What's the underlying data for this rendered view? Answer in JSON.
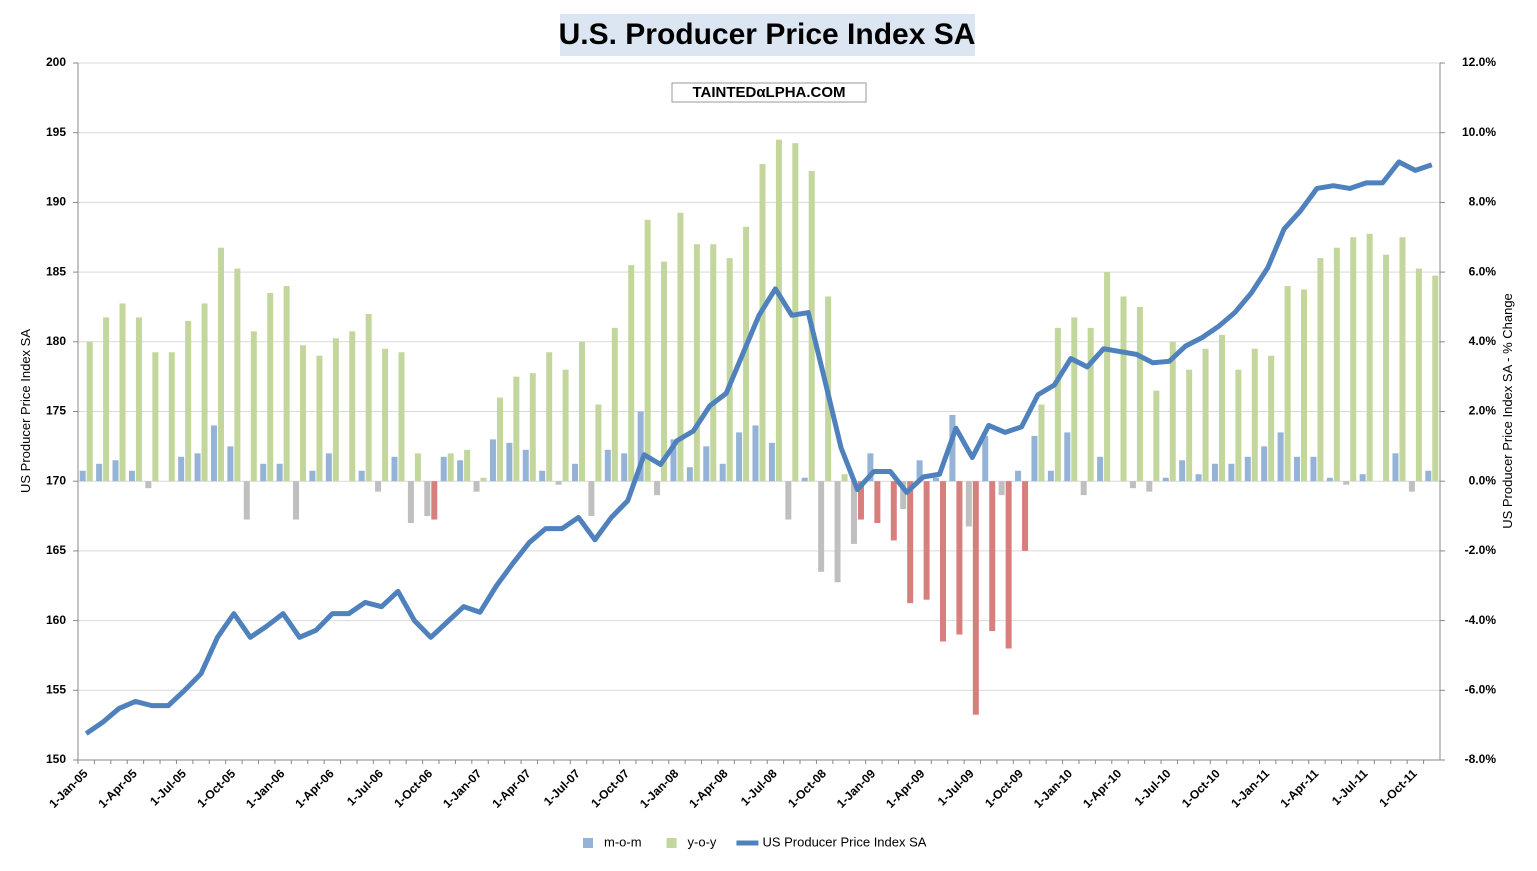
{
  "chart_data": {
    "type": "combo",
    "title": "U.S. Producer Price Index SA",
    "watermark": "TAINTEDαLPHA.COM",
    "y_label": "US Producer Price Index SA",
    "y2_label": "US Producer Price Index SA - % Change",
    "grid": true,
    "legend": "bottom",
    "categories": [
      "1-Jan-05",
      null,
      null,
      "1-Apr-05",
      null,
      null,
      "1-Jul-05",
      null,
      null,
      "1-Oct-05",
      null,
      null,
      "1-Jan-06",
      null,
      null,
      "1-Apr-06",
      null,
      null,
      "1-Jul-06",
      null,
      null,
      "1-Oct-06",
      null,
      null,
      "1-Jan-07",
      null,
      null,
      "1-Apr-07",
      null,
      null,
      "1-Jul-07",
      null,
      null,
      "1-Oct-07",
      null,
      null,
      "1-Jan-08",
      null,
      null,
      "1-Apr-08",
      null,
      null,
      "1-Jul-08",
      null,
      null,
      "1-Oct-08",
      null,
      null,
      "1-Jan-09",
      null,
      null,
      "1-Apr-09",
      null,
      null,
      "1-Jul-09",
      null,
      null,
      "1-Oct-09",
      null,
      null,
      "1-Jan-10",
      null,
      null,
      "1-Apr-10",
      null,
      null,
      "1-Jul-10",
      null,
      null,
      "1-Oct-10",
      null,
      null,
      "1-Jan-11",
      null,
      null,
      "1-Apr-11",
      null,
      null,
      "1-Jul-11",
      null,
      null,
      "1-Oct-11",
      null
    ],
    "ylim": [
      150,
      200
    ],
    "yticks": [
      150,
      155,
      160,
      165,
      170,
      175,
      180,
      185,
      190,
      195,
      200
    ],
    "y2lim": [
      -8,
      12
    ],
    "y2ticks": [
      {
        "value": -8,
        "label": "-8.0%"
      },
      {
        "value": -6,
        "label": "-6.0%"
      },
      {
        "value": -4,
        "label": "-4.0%"
      },
      {
        "value": -2,
        "label": "-2.0%"
      },
      {
        "value": 0,
        "label": "0.0%"
      },
      {
        "value": 2,
        "label": "2.0%"
      },
      {
        "value": 4,
        "label": "4.0%"
      },
      {
        "value": 6,
        "label": "6.0%"
      },
      {
        "value": 8,
        "label": "8.0%"
      },
      {
        "value": 10,
        "label": "10.0%"
      },
      {
        "value": 12,
        "label": "12.0%"
      }
    ],
    "series": [
      {
        "name": "m-o-m",
        "type": "bar",
        "axis": "y2",
        "color": "#95b3d7",
        "negative_color": "#bfbfbf",
        "values": [
          0.3,
          0.5,
          0.6,
          0.3,
          -0.2,
          0.0,
          0.7,
          0.8,
          1.6,
          1.0,
          -1.1,
          0.5,
          0.5,
          -1.1,
          0.3,
          0.8,
          0.0,
          0.3,
          -0.3,
          0.7,
          -1.2,
          -1.0,
          0.7,
          0.6,
          -0.3,
          1.2,
          1.1,
          0.9,
          0.3,
          -0.1,
          0.5,
          -1.0,
          0.9,
          0.8,
          2.0,
          -0.4,
          1.2,
          0.4,
          1.0,
          0.5,
          1.4,
          1.6,
          1.1,
          -1.1,
          0.1,
          -2.6,
          -2.9,
          -1.8,
          0.8,
          0.0,
          -0.8,
          0.6,
          0.1,
          1.9,
          -1.3,
          1.3,
          -0.4,
          0.3,
          1.3,
          0.3,
          1.4,
          -0.4,
          0.7,
          0.0,
          -0.2,
          -0.3,
          0.1,
          0.6,
          0.2,
          0.5,
          0.5,
          0.7,
          1.0,
          1.4,
          0.7,
          0.7,
          0.1,
          -0.1,
          0.2,
          0.0,
          0.8,
          -0.3,
          0.3
        ]
      },
      {
        "name": "y-o-y",
        "type": "bar",
        "axis": "y2",
        "color": "#c3d69b",
        "negative_color": "#d67f7c",
        "values": [
          4.0,
          4.7,
          5.1,
          4.7,
          3.7,
          3.7,
          4.6,
          5.1,
          6.7,
          6.1,
          4.3,
          5.4,
          5.6,
          3.9,
          3.6,
          4.1,
          4.3,
          4.8,
          3.8,
          3.7,
          0.8,
          -1.1,
          0.8,
          0.9,
          0.1,
          2.4,
          3.0,
          3.1,
          3.7,
          3.2,
          4.0,
          2.2,
          4.4,
          6.2,
          7.5,
          6.3,
          7.7,
          6.8,
          6.8,
          6.4,
          7.3,
          9.1,
          9.8,
          9.7,
          8.9,
          5.3,
          0.2,
          -1.1,
          -1.2,
          -1.7,
          -3.5,
          -3.4,
          -4.6,
          -4.4,
          -6.7,
          -4.3,
          -4.8,
          -2.0,
          2.2,
          4.4,
          4.7,
          4.4,
          6.0,
          5.3,
          5.0,
          2.6,
          4.0,
          3.2,
          3.8,
          4.2,
          3.2,
          3.8,
          3.6,
          5.6,
          5.5,
          6.4,
          6.7,
          7.0,
          7.1,
          6.5,
          7.0,
          6.1,
          5.9
        ]
      },
      {
        "name": "US Producer Price Index SA",
        "type": "line",
        "color": "#4f81bd",
        "values": [
          151.9,
          152.7,
          153.7,
          154.2,
          153.9,
          153.9,
          155.0,
          156.2,
          158.8,
          160.5,
          158.8,
          159.6,
          160.5,
          158.8,
          159.3,
          160.5,
          160.5,
          161.3,
          161.0,
          162.1,
          160.0,
          158.8,
          159.9,
          161.0,
          160.6,
          162.5,
          164.1,
          165.6,
          166.6,
          166.6,
          167.4,
          165.8,
          167.4,
          168.6,
          171.9,
          171.2,
          172.9,
          173.6,
          175.4,
          176.3,
          179.1,
          181.9,
          183.8,
          181.9,
          182.1,
          177.3,
          172.4,
          169.4,
          170.7,
          170.7,
          169.2,
          170.3,
          170.5,
          173.8,
          171.7,
          174.0,
          173.5,
          173.9,
          176.2,
          176.9,
          178.8,
          178.2,
          179.5,
          179.3,
          179.1,
          178.5,
          178.6,
          179.7,
          180.3,
          181.1,
          182.1,
          183.5,
          185.3,
          188.1,
          189.4,
          191.0,
          191.2,
          191.0,
          191.4,
          191.4,
          192.9,
          192.3,
          192.7
        ]
      }
    ]
  }
}
